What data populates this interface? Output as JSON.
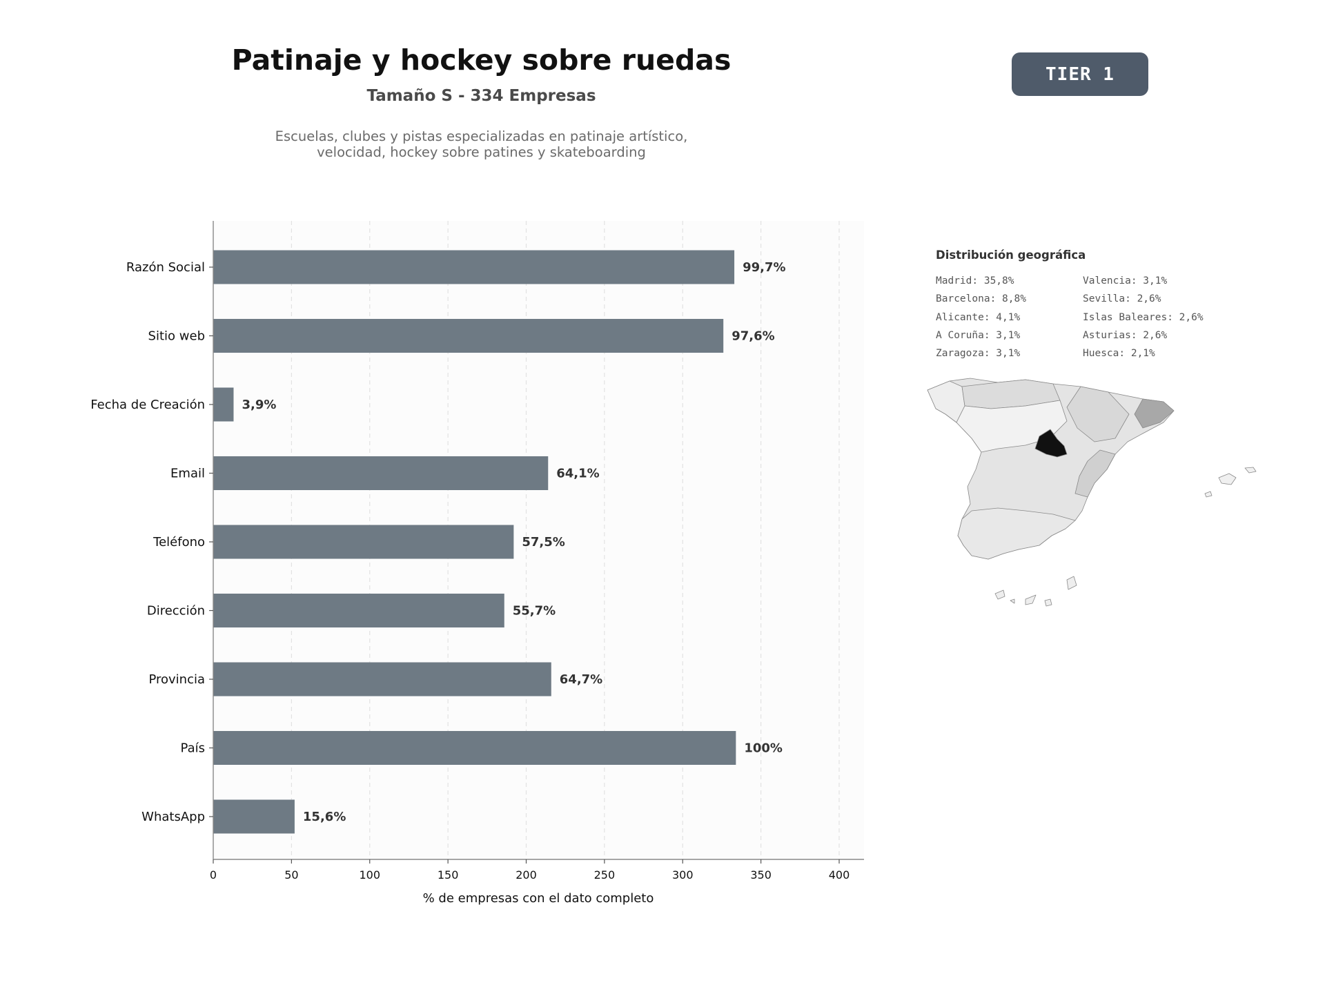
{
  "header": {
    "title": "Patinaje y hockey sobre ruedas",
    "subtitle": "Tamaño S - 334 Empresas",
    "description": "Escuelas, clubes y pistas especializadas en patinaje artístico,\nvelocidad, hockey sobre patines y skateboarding",
    "tier": "TIER 1"
  },
  "chart_data": {
    "type": "bar",
    "orientation": "horizontal",
    "categories": [
      "Razón Social",
      "Sitio web",
      "Fecha de Creación",
      "Email",
      "Teléfono",
      "Dirección",
      "Provincia",
      "País",
      "WhatsApp"
    ],
    "values": [
      333,
      326,
      13,
      214,
      192,
      186,
      216,
      334,
      52
    ],
    "data_labels": [
      "99,7%",
      "97,6%",
      "3,9%",
      "64,1%",
      "57,5%",
      "55,7%",
      "64,7%",
      "100%",
      "15,6%"
    ],
    "xlabel": "% de empresas con el dato completo",
    "ylabel": "",
    "xlim": [
      0,
      418
    ],
    "xticks": [
      0,
      50,
      100,
      150,
      200,
      250,
      300,
      350,
      400
    ],
    "grid": "vertical dashed",
    "bar_color": "#6e7a84"
  },
  "geo": {
    "title": "Distribución geográfica",
    "items": [
      "Madrid: 35,8%",
      "Valencia: 3,1%",
      "Barcelona: 8,8%",
      "Sevilla: 2,6%",
      "Alicante: 4,1%",
      "Islas Baleares: 2,6%",
      "A Coruña: 3,1%",
      "Asturias: 2,6%",
      "Zaragoza: 3,1%",
      "Huesca: 2,1%"
    ],
    "highlight_colors": {
      "madrid": "#111111",
      "barcelona": "#a8a8a8",
      "base": "#e4e4e4"
    }
  }
}
